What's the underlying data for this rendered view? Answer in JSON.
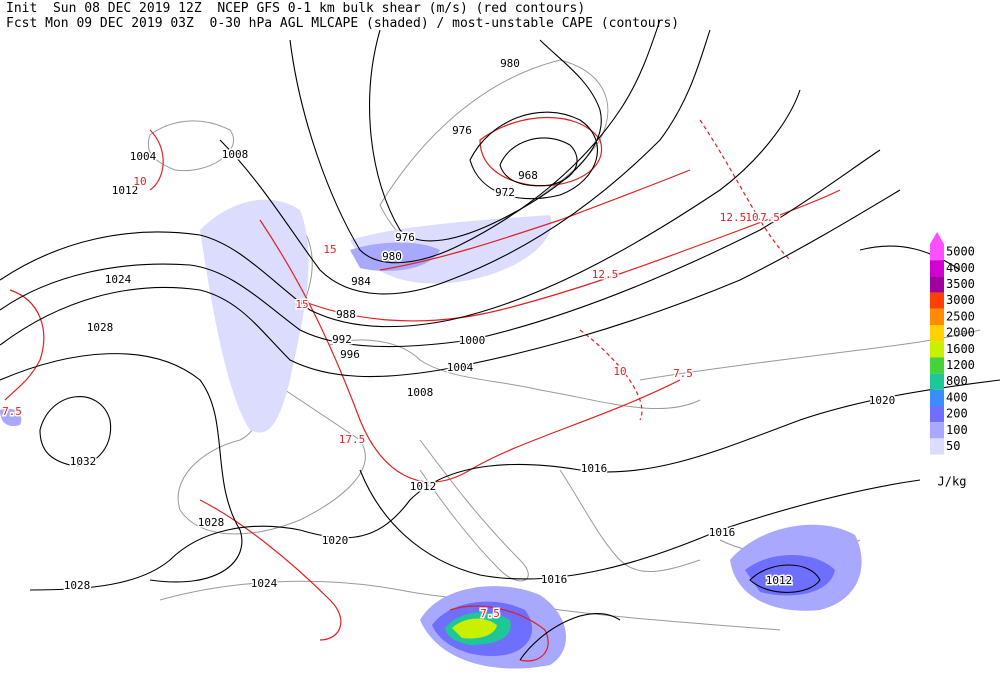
{
  "header": {
    "line1": "Init  Sun 08 DEC 2019 12Z  NCEP GFS 0-1 km bulk shear (m/s) (red contours)",
    "line2": "Fcst Mon 09 DEC 2019 03Z  0-30 hPa AGL MLCAPE (shaded) / most-unstable CAPE (contours)"
  },
  "legend": {
    "unit": "J/kg",
    "levels": [
      {
        "value": 5000,
        "color": "#ff50ff"
      },
      {
        "value": 4000,
        "color": "#d200d2"
      },
      {
        "value": 3500,
        "color": "#a000a0"
      },
      {
        "value": 3000,
        "color": "#ff4000"
      },
      {
        "value": 2500,
        "color": "#ff8c00"
      },
      {
        "value": 2000,
        "color": "#ffd200"
      },
      {
        "value": 1600,
        "color": "#c8f000"
      },
      {
        "value": 1200,
        "color": "#46d23c"
      },
      {
        "value": 800,
        "color": "#1ec896"
      },
      {
        "value": 400,
        "color": "#3c8cff"
      },
      {
        "value": 200,
        "color": "#6e6eff"
      },
      {
        "value": 100,
        "color": "#a8a8ff"
      },
      {
        "value": 50,
        "color": "#dcdcff"
      }
    ]
  },
  "isobar_labels": [
    980,
    1004,
    1008,
    1012,
    976,
    968,
    972,
    976,
    980,
    984,
    988,
    992,
    996,
    1000,
    1004,
    1008,
    1024,
    1028,
    1032,
    1012,
    1016,
    1020,
    1016,
    1028,
    1020,
    1024,
    1016,
    1012,
    1028
  ],
  "shear_labels": [
    7.5,
    10,
    15,
    12.5,
    10,
    7.5,
    7.5,
    17.5,
    15,
    12.5,
    7.5,
    10
  ]
}
